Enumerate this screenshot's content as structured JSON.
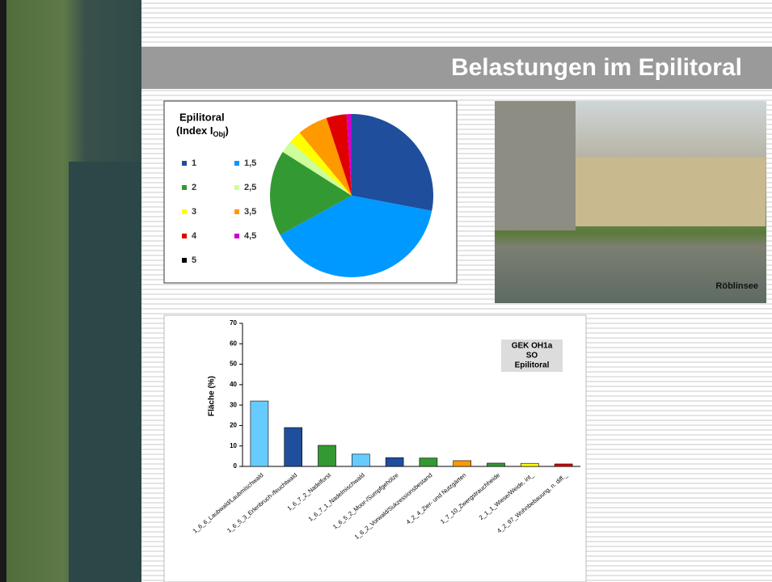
{
  "header": {
    "title": "Belastungen im Epilitoral"
  },
  "photo": {
    "caption": "Röblinsee"
  },
  "chart_data": [
    {
      "type": "pie",
      "title": "Epilitoral",
      "index_label": {
        "text": "(Index I",
        "sub": "Obj",
        "close": ")"
      },
      "categories": [
        "1",
        "1,5",
        "2",
        "2,5",
        "3",
        "3,5",
        "4",
        "4,5",
        "5"
      ],
      "values": [
        28,
        39,
        17,
        2.5,
        2.5,
        6,
        4,
        1,
        0
      ],
      "colors": [
        "#1f4e9c",
        "#0099ff",
        "#339933",
        "#ccff99",
        "#ffff00",
        "#ff9900",
        "#e00000",
        "#cc00cc",
        "#000000"
      ]
    },
    {
      "type": "bar",
      "ylabel": "Fläche (%)",
      "annotation": [
        "GEK OH1a",
        "SO",
        "Epilitoral"
      ],
      "categories": [
        "1_6_6_Laubwald/Laubmischwald",
        "1_6_5_3_Erlenbruch-/feuchtwald",
        "1_6_7_2_Nadelforst",
        "1_6_7_1_Nadelmischwald",
        "1_6_5_2_Moor-/Sumpfgehölze",
        "1_6_2_Vorwald/Sukzessionsbestand",
        "4_2_4_Zier- und Nutzgärten",
        "1_7_10_Zwergstrauchheide",
        "2_1_1_Wiese/Weide, int_",
        "4_2_97_Wohnbebauung, n. diff._"
      ],
      "values": [
        32,
        19,
        10.3,
        6,
        4.3,
        4.1,
        2.8,
        1.6,
        1.5,
        1.2
      ],
      "colors": [
        "#66ccff",
        "#1f4e9c",
        "#339933",
        "#66ccff",
        "#1f4e9c",
        "#339933",
        "#ff9900",
        "#339933",
        "#ffff00",
        "#e00000"
      ],
      "ylim": [
        0,
        70
      ],
      "yticks": [
        0,
        10,
        20,
        30,
        40,
        50,
        60,
        70
      ]
    }
  ]
}
